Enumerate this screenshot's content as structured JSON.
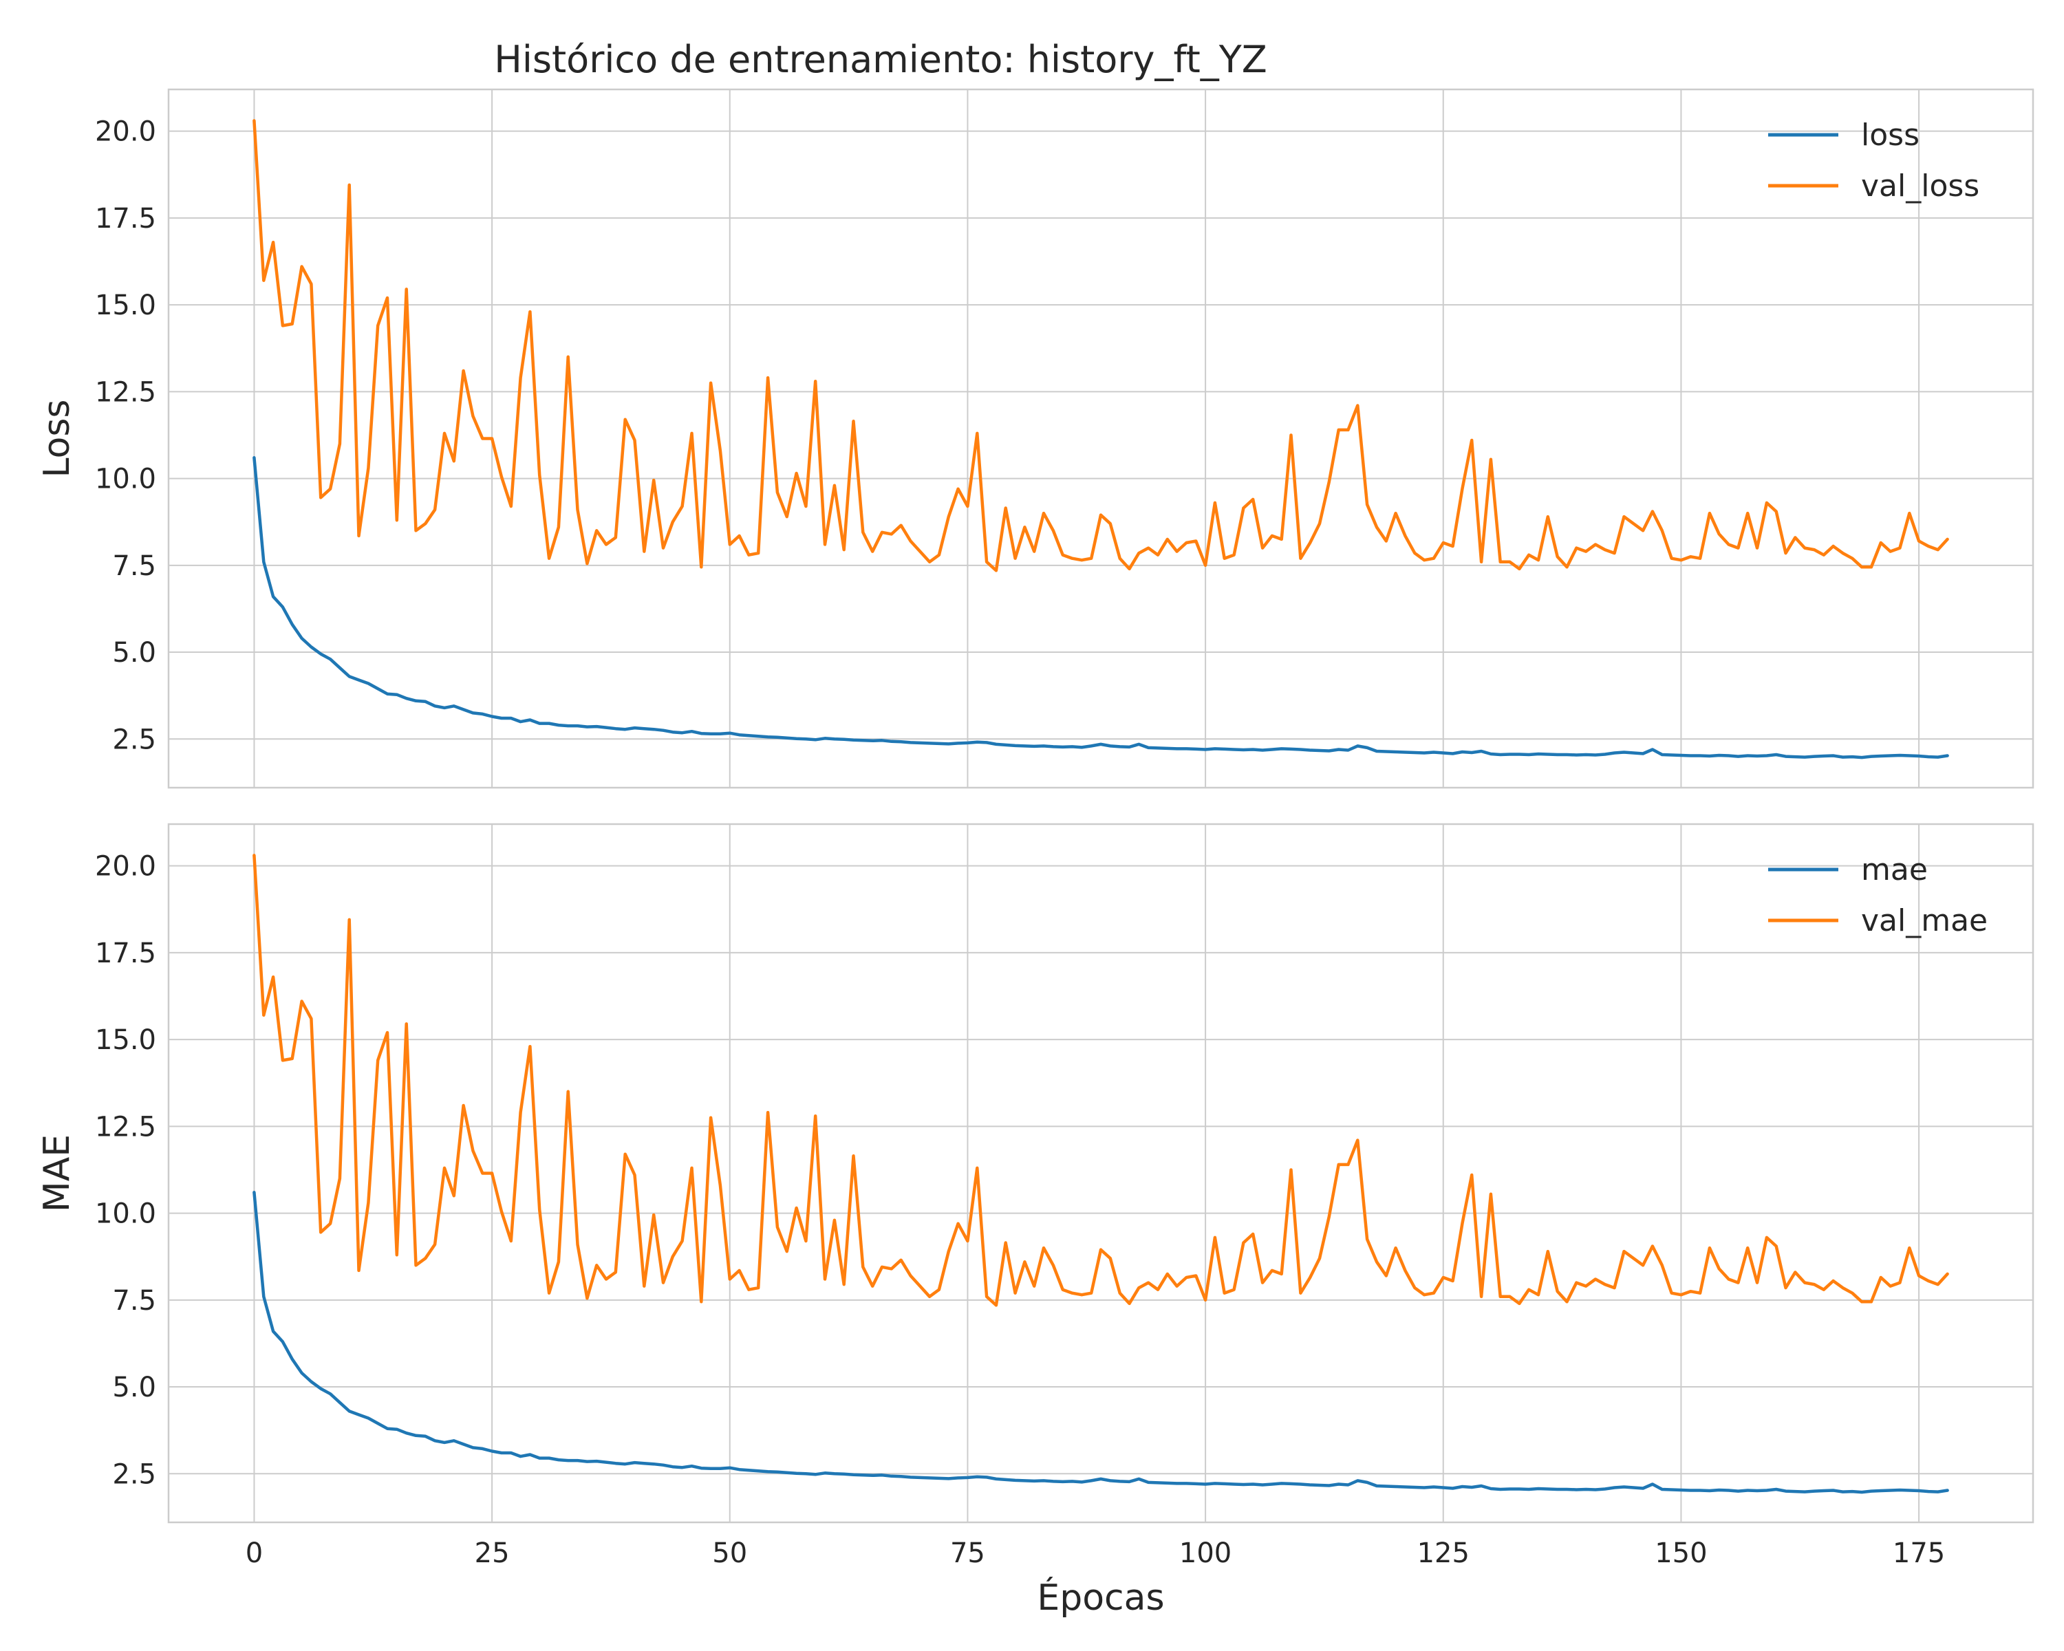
{
  "title": "Histórico de entrenamiento: history_ft_YZ",
  "chart_data": {
    "type": "line",
    "title": "Histórico de entrenamiento: history_ft_YZ",
    "xlabel": "Épocas",
    "xlim": [
      -9,
      187
    ],
    "xticks": [
      0,
      25,
      50,
      75,
      100,
      125,
      150,
      175
    ],
    "grid": true,
    "x": [
      0,
      1,
      2,
      3,
      4,
      5,
      6,
      7,
      8,
      9,
      10,
      11,
      12,
      13,
      14,
      15,
      16,
      17,
      18,
      19,
      20,
      21,
      22,
      23,
      24,
      25,
      26,
      27,
      28,
      29,
      30,
      31,
      32,
      33,
      34,
      35,
      36,
      37,
      38,
      39,
      40,
      41,
      42,
      43,
      44,
      45,
      46,
      47,
      48,
      49,
      50,
      51,
      52,
      53,
      54,
      55,
      56,
      57,
      58,
      59,
      60,
      61,
      62,
      63,
      64,
      65,
      66,
      67,
      68,
      69,
      70,
      71,
      72,
      73,
      74,
      75,
      76,
      77,
      78,
      79,
      80,
      81,
      82,
      83,
      84,
      85,
      86,
      87,
      88,
      89,
      90,
      91,
      92,
      93,
      94,
      95,
      96,
      97,
      98,
      99,
      100,
      101,
      102,
      103,
      104,
      105,
      106,
      107,
      108,
      109,
      110,
      111,
      112,
      113,
      114,
      115,
      116,
      117,
      118,
      119,
      120,
      121,
      122,
      123,
      124,
      125,
      126,
      127,
      128,
      129,
      130,
      131,
      132,
      133,
      134,
      135,
      136,
      137,
      138,
      139,
      140,
      141,
      142,
      143,
      144,
      145,
      146,
      147,
      148,
      149,
      150,
      151,
      152,
      153,
      154,
      155,
      156,
      157,
      158,
      159,
      160,
      161,
      162,
      163,
      164,
      165,
      166,
      167,
      168,
      169,
      170,
      171,
      172,
      173,
      174,
      175,
      176,
      177,
      178
    ],
    "panels": [
      {
        "ylabel": "Loss",
        "ylim": [
          1.1,
          21.2
        ],
        "yticks": [
          2.5,
          5.0,
          7.5,
          10.0,
          12.5,
          15.0,
          17.5,
          20.0
        ],
        "yticklabels": [
          "2.5",
          "5.0",
          "7.5",
          "10.0",
          "12.5",
          "15.0",
          "17.5",
          "20.0"
        ],
        "legend": "top-right",
        "series": [
          {
            "name": "loss",
            "color": "#1f77b4",
            "values": [
              10.6,
              7.6,
              6.6,
              6.3,
              5.8,
              5.4,
              5.15,
              4.95,
              4.8,
              4.55,
              4.3,
              4.2,
              4.1,
              3.95,
              3.8,
              3.78,
              3.67,
              3.6,
              3.58,
              3.45,
              3.4,
              3.45,
              3.35,
              3.25,
              3.22,
              3.15,
              3.1,
              3.1,
              3.0,
              3.05,
              2.95,
              2.95,
              2.9,
              2.88,
              2.88,
              2.85,
              2.86,
              2.83,
              2.8,
              2.78,
              2.82,
              2.8,
              2.78,
              2.75,
              2.7,
              2.68,
              2.72,
              2.66,
              2.65,
              2.65,
              2.67,
              2.62,
              2.6,
              2.58,
              2.56,
              2.55,
              2.53,
              2.51,
              2.5,
              2.48,
              2.52,
              2.5,
              2.49,
              2.47,
              2.46,
              2.45,
              2.46,
              2.43,
              2.42,
              2.4,
              2.39,
              2.38,
              2.37,
              2.36,
              2.38,
              2.39,
              2.41,
              2.4,
              2.35,
              2.33,
              2.31,
              2.3,
              2.29,
              2.3,
              2.28,
              2.27,
              2.28,
              2.26,
              2.3,
              2.35,
              2.3,
              2.28,
              2.27,
              2.35,
              2.25,
              2.24,
              2.23,
              2.22,
              2.22,
              2.21,
              2.2,
              2.22,
              2.21,
              2.2,
              2.19,
              2.2,
              2.18,
              2.2,
              2.22,
              2.21,
              2.2,
              2.18,
              2.17,
              2.16,
              2.2,
              2.18,
              2.3,
              2.25,
              2.15,
              2.14,
              2.13,
              2.12,
              2.11,
              2.1,
              2.12,
              2.1,
              2.08,
              2.13,
              2.11,
              2.15,
              2.07,
              2.05,
              2.06,
              2.06,
              2.05,
              2.07,
              2.06,
              2.05,
              2.05,
              2.04,
              2.05,
              2.04,
              2.06,
              2.1,
              2.12,
              2.1,
              2.08,
              2.2,
              2.05,
              2.04,
              2.03,
              2.02,
              2.02,
              2.01,
              2.03,
              2.02,
              2.0,
              2.02,
              2.01,
              2.02,
              2.05,
              2.0,
              1.99,
              1.98,
              2.0,
              2.01,
              2.02,
              1.98,
              1.99,
              1.97,
              2.0,
              2.01,
              2.02,
              2.03,
              2.02,
              2.01,
              1.99,
              1.98,
              2.02
            ]
          },
          {
            "name": "val_loss",
            "color": "#ff7f0e",
            "values": [
              20.3,
              15.7,
              16.8,
              14.4,
              14.45,
              16.1,
              15.6,
              9.45,
              9.7,
              11.0,
              18.45,
              8.35,
              10.3,
              14.4,
              15.2,
              8.8,
              15.45,
              8.5,
              8.7,
              9.1,
              11.3,
              10.5,
              13.1,
              11.8,
              11.15,
              11.15,
              10.05,
              9.2,
              12.9,
              14.8,
              10.1,
              7.7,
              8.6,
              13.5,
              9.1,
              7.55,
              8.5,
              8.1,
              8.3,
              11.7,
              11.1,
              7.9,
              9.95,
              8.0,
              8.75,
              9.2,
              11.3,
              7.45,
              12.75,
              10.8,
              8.1,
              8.35,
              7.8,
              7.85,
              12.9,
              9.6,
              8.9,
              10.15,
              9.2,
              12.8,
              8.1,
              9.8,
              7.95,
              11.65,
              8.45,
              7.9,
              8.45,
              8.4,
              8.65,
              8.2,
              7.9,
              7.6,
              7.8,
              8.9,
              9.7,
              9.2,
              11.3,
              7.6,
              7.35,
              9.15,
              7.7,
              8.6,
              7.9,
              9.0,
              8.5,
              7.8,
              7.7,
              7.65,
              7.7,
              8.95,
              8.7,
              7.7,
              7.4,
              7.85,
              8.0,
              7.8,
              8.25,
              7.9,
              8.15,
              8.2,
              7.5,
              9.3,
              7.7,
              7.8,
              9.15,
              9.4,
              8.0,
              8.35,
              8.25,
              11.25,
              7.7,
              8.15,
              8.7,
              9.9,
              11.4,
              11.4,
              12.1,
              9.25,
              8.6,
              8.2,
              9.0,
              8.35,
              7.85,
              7.65,
              7.7,
              8.15,
              8.05,
              9.7,
              11.1,
              7.6,
              10.55,
              7.6,
              7.6,
              7.4,
              7.8,
              7.65,
              8.9,
              7.75,
              7.45,
              8.0,
              7.9,
              8.1,
              7.95,
              7.85,
              8.9,
              8.7,
              8.5,
              9.05,
              8.5,
              7.7,
              7.65,
              7.75,
              7.7,
              9.0,
              8.4,
              8.1,
              8.0,
              9.0,
              8.0,
              9.3,
              9.05,
              7.85,
              8.3,
              8.0,
              7.95,
              7.8,
              8.05,
              7.85,
              7.7,
              7.45,
              7.45,
              8.15,
              7.9,
              8.0,
              9.0,
              8.2,
              8.05,
              7.95,
              8.25
            ]
          }
        ]
      },
      {
        "ylabel": "MAE",
        "ylim": [
          1.1,
          21.2
        ],
        "yticks": [
          2.5,
          5.0,
          7.5,
          10.0,
          12.5,
          15.0,
          17.5,
          20.0
        ],
        "yticklabels": [
          "2.5",
          "5.0",
          "7.5",
          "10.0",
          "12.5",
          "15.0",
          "17.5",
          "20.0"
        ],
        "legend": "top-right",
        "series": [
          {
            "name": "mae",
            "color": "#1f77b4",
            "values": [
              10.6,
              7.6,
              6.6,
              6.3,
              5.8,
              5.4,
              5.15,
              4.95,
              4.8,
              4.55,
              4.3,
              4.2,
              4.1,
              3.95,
              3.8,
              3.78,
              3.67,
              3.6,
              3.58,
              3.45,
              3.4,
              3.45,
              3.35,
              3.25,
              3.22,
              3.15,
              3.1,
              3.1,
              3.0,
              3.05,
              2.95,
              2.95,
              2.9,
              2.88,
              2.88,
              2.85,
              2.86,
              2.83,
              2.8,
              2.78,
              2.82,
              2.8,
              2.78,
              2.75,
              2.7,
              2.68,
              2.72,
              2.66,
              2.65,
              2.65,
              2.67,
              2.62,
              2.6,
              2.58,
              2.56,
              2.55,
              2.53,
              2.51,
              2.5,
              2.48,
              2.52,
              2.5,
              2.49,
              2.47,
              2.46,
              2.45,
              2.46,
              2.43,
              2.42,
              2.4,
              2.39,
              2.38,
              2.37,
              2.36,
              2.38,
              2.39,
              2.41,
              2.4,
              2.35,
              2.33,
              2.31,
              2.3,
              2.29,
              2.3,
              2.28,
              2.27,
              2.28,
              2.26,
              2.3,
              2.35,
              2.3,
              2.28,
              2.27,
              2.35,
              2.25,
              2.24,
              2.23,
              2.22,
              2.22,
              2.21,
              2.2,
              2.22,
              2.21,
              2.2,
              2.19,
              2.2,
              2.18,
              2.2,
              2.22,
              2.21,
              2.2,
              2.18,
              2.17,
              2.16,
              2.2,
              2.18,
              2.3,
              2.25,
              2.15,
              2.14,
              2.13,
              2.12,
              2.11,
              2.1,
              2.12,
              2.1,
              2.08,
              2.13,
              2.11,
              2.15,
              2.07,
              2.05,
              2.06,
              2.06,
              2.05,
              2.07,
              2.06,
              2.05,
              2.05,
              2.04,
              2.05,
              2.04,
              2.06,
              2.1,
              2.12,
              2.1,
              2.08,
              2.2,
              2.05,
              2.04,
              2.03,
              2.02,
              2.02,
              2.01,
              2.03,
              2.02,
              2.0,
              2.02,
              2.01,
              2.02,
              2.05,
              2.0,
              1.99,
              1.98,
              2.0,
              2.01,
              2.02,
              1.98,
              1.99,
              1.97,
              2.0,
              2.01,
              2.02,
              2.03,
              2.02,
              2.01,
              1.99,
              1.98,
              2.02
            ]
          },
          {
            "name": "val_mae",
            "color": "#ff7f0e",
            "values": [
              20.3,
              15.7,
              16.8,
              14.4,
              14.45,
              16.1,
              15.6,
              9.45,
              9.7,
              11.0,
              18.45,
              8.35,
              10.3,
              14.4,
              15.2,
              8.8,
              15.45,
              8.5,
              8.7,
              9.1,
              11.3,
              10.5,
              13.1,
              11.8,
              11.15,
              11.15,
              10.05,
              9.2,
              12.9,
              14.8,
              10.1,
              7.7,
              8.6,
              13.5,
              9.1,
              7.55,
              8.5,
              8.1,
              8.3,
              11.7,
              11.1,
              7.9,
              9.95,
              8.0,
              8.75,
              9.2,
              11.3,
              7.45,
              12.75,
              10.8,
              8.1,
              8.35,
              7.8,
              7.85,
              12.9,
              9.6,
              8.9,
              10.15,
              9.2,
              12.8,
              8.1,
              9.8,
              7.95,
              11.65,
              8.45,
              7.9,
              8.45,
              8.4,
              8.65,
              8.2,
              7.9,
              7.6,
              7.8,
              8.9,
              9.7,
              9.2,
              11.3,
              7.6,
              7.35,
              9.15,
              7.7,
              8.6,
              7.9,
              9.0,
              8.5,
              7.8,
              7.7,
              7.65,
              7.7,
              8.95,
              8.7,
              7.7,
              7.4,
              7.85,
              8.0,
              7.8,
              8.25,
              7.9,
              8.15,
              8.2,
              7.5,
              9.3,
              7.7,
              7.8,
              9.15,
              9.4,
              8.0,
              8.35,
              8.25,
              11.25,
              7.7,
              8.15,
              8.7,
              9.9,
              11.4,
              11.4,
              12.1,
              9.25,
              8.6,
              8.2,
              9.0,
              8.35,
              7.85,
              7.65,
              7.7,
              8.15,
              8.05,
              9.7,
              11.1,
              7.6,
              10.55,
              7.6,
              7.6,
              7.4,
              7.8,
              7.65,
              8.9,
              7.75,
              7.45,
              8.0,
              7.9,
              8.1,
              7.95,
              7.85,
              8.9,
              8.7,
              8.5,
              9.05,
              8.5,
              7.7,
              7.65,
              7.75,
              7.7,
              9.0,
              8.4,
              8.1,
              8.0,
              9.0,
              8.0,
              9.3,
              9.05,
              7.85,
              8.3,
              8.0,
              7.95,
              7.8,
              8.05,
              7.85,
              7.7,
              7.45,
              7.45,
              8.15,
              7.9,
              8.0,
              9.0,
              8.2,
              8.05,
              7.95,
              8.25
            ]
          }
        ]
      }
    ]
  }
}
